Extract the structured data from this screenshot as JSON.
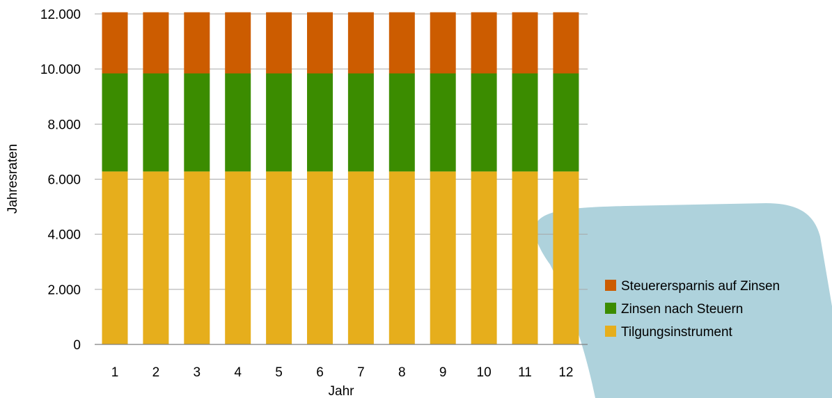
{
  "colors": {
    "steuerersparnis": "#cc5c00",
    "zinsen": "#3b8c00",
    "tilgung": "#e6ae1c",
    "grid": "#a6a6a6",
    "decor_shape": "#aed2dc"
  },
  "chart_data": {
    "type": "bar",
    "stacked": true,
    "categories": [
      "1",
      "2",
      "3",
      "4",
      "5",
      "6",
      "7",
      "8",
      "9",
      "10",
      "11",
      "12"
    ],
    "series": [
      {
        "name": "Tilgungsinstrument",
        "color": "#e6ae1c",
        "values": [
          6280,
          6280,
          6280,
          6280,
          6280,
          6280,
          6280,
          6280,
          6280,
          6280,
          6280,
          6280
        ]
      },
      {
        "name": "Zinsen nach Steuern",
        "color": "#3b8c00",
        "values": [
          3560,
          3560,
          3560,
          3560,
          3560,
          3560,
          3560,
          3560,
          3560,
          3560,
          3560,
          3560
        ]
      },
      {
        "name": "Steuerersparnis auf Zinsen",
        "color": "#cc5c00",
        "values": [
          2220,
          2220,
          2220,
          2220,
          2220,
          2220,
          2220,
          2220,
          2220,
          2220,
          2220,
          2220
        ]
      }
    ],
    "yticks": [
      "0",
      "2.000",
      "4.000",
      "6.000",
      "8.000",
      "10.000",
      "12.000"
    ],
    "ytick_values": [
      0,
      2000,
      4000,
      6000,
      8000,
      10000,
      12000
    ],
    "ylim": [
      0,
      12000
    ],
    "xlabel": "Jahr",
    "ylabel": "Jahresraten",
    "grid": true,
    "legend_position": "right",
    "legend_order": [
      "Steuerersparnis auf Zinsen",
      "Zinsen nach Steuern",
      "Tilgungsinstrument"
    ]
  }
}
